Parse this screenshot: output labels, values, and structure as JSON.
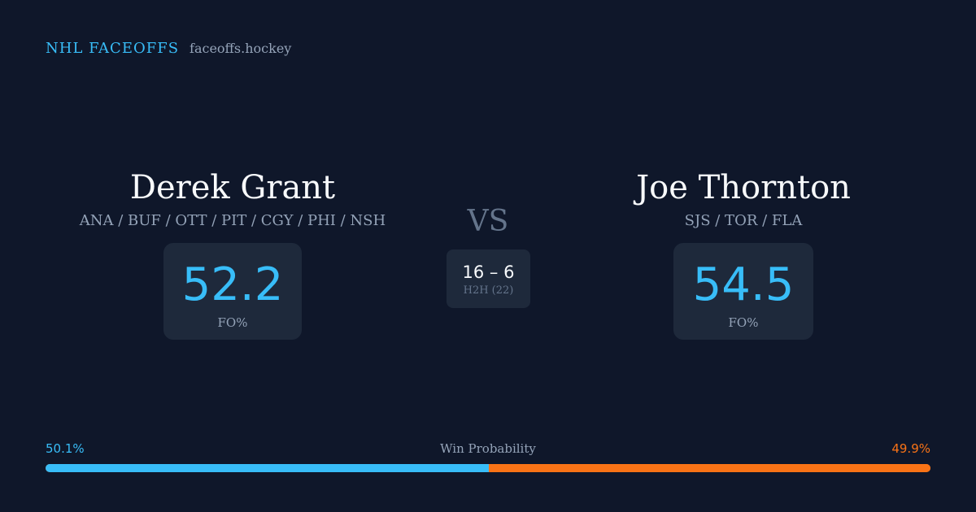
{
  "brand": {
    "title": "NHL FACEOFFS",
    "url": "faceoffs.hockey"
  },
  "player_left": {
    "name": "Derek Grant",
    "teams": "ANA / BUF / OTT / PIT / CGY / PHI / NSH",
    "fo_value": "52.2",
    "fo_label": "FO%"
  },
  "player_right": {
    "name": "Joe Thornton",
    "teams": "SJS / TOR / FLA",
    "fo_value": "54.5",
    "fo_label": "FO%"
  },
  "matchup": {
    "vs_label": "VS",
    "h2h_score": "16 – 6",
    "h2h_label": "H2H (22)"
  },
  "win_probability": {
    "title": "Win Probability",
    "left_label": "50.1%",
    "right_label": "49.9%",
    "left_fraction": 0.501,
    "right_fraction": 0.499,
    "left_color": "#38bdf8",
    "right_color": "#f97316"
  },
  "colors": {
    "background": "#0f172a",
    "card": "#1e293b",
    "accent": "#38bdf8",
    "secondary_accent": "#f97316"
  }
}
